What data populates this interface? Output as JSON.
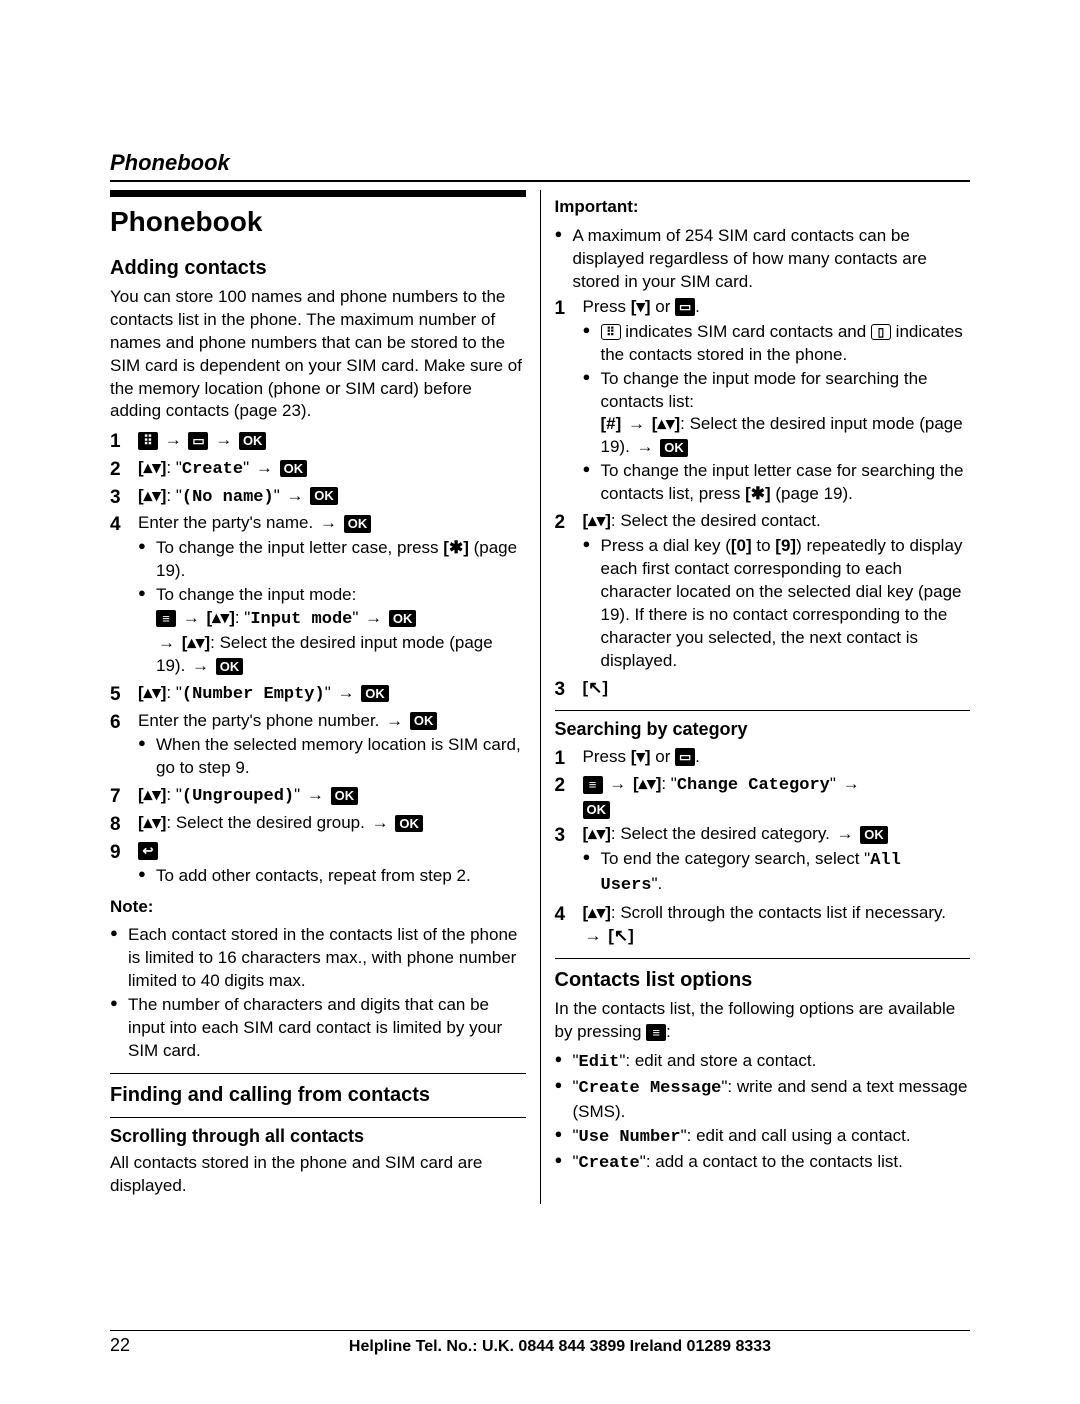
{
  "runningHead": "Phonebook",
  "footer": {
    "page": "22",
    "helpline": "Helpline Tel. No.: U.K. 0844 844 3899 Ireland 01289 8333"
  },
  "left": {
    "h1": "Phonebook",
    "h2_add": "Adding contacts",
    "intro": "You can store 100 names and phone numbers to the contacts list in the phone. The maximum number of names and phone numbers that can be stored to the SIM card is dependent on your SIM card. Make sure of the memory location (phone or SIM card) before adding contacts (page 23).",
    "s2_create": "Create",
    "s3_noname": "(No name)",
    "s4_enter": "Enter the party's name.",
    "s4_b1": "To change the input letter case, press",
    "s4_b1_tail": "(page 19).",
    "s4_b2": "To change the input mode:",
    "s4_input": "Input mode",
    "s4_b2b": ": Select the desired input mode (page 19).",
    "s5_num": "(Number Empty)",
    "s6_enter": "Enter the party's phone number.",
    "s6_b1": "When the selected memory location is SIM card, go to step 9.",
    "s7_ung": "(Ungrouped)",
    "s8": ": Select the desired group.",
    "s9_b1": "To add other contacts, repeat from step 2.",
    "note_label": "Note:",
    "note1": "Each contact stored in the contacts list of the phone is limited to 16 characters max., with phone number limited to 40 digits max.",
    "note2": "The number of characters and digits that can be input into each SIM card contact is limited by your SIM card.",
    "h2_find": "Finding and calling from contacts",
    "h3_scroll": "Scrolling through all contacts",
    "scroll_p": "All contacts stored in the phone and SIM card are displayed."
  },
  "right": {
    "important": "Important:",
    "imp1": "A maximum of 254 SIM card contacts can be displayed regardless of how many contacts are stored in your SIM card.",
    "s1_press": "Press",
    "s1_or": "or",
    "s1_b1a": "indicates SIM card contacts and",
    "s1_b1b": "indicates the contacts stored in the phone.",
    "s1_b2a": "To change the input mode for searching the contacts list:",
    "s1_b2b": ": Select the desired input mode (page 19).",
    "s1_b3a": "To change the input letter case for searching the contacts list, press",
    "s1_b3b": "(page 19).",
    "s2": ": Select the desired contact.",
    "s2_b1": "Press a dial key (",
    "s2_b1b": ") repeatedly to display each first contact corresponding to each character located on the selected dial key (page 19). If there is no contact corresponding to the character you selected, the next contact is displayed.",
    "s2_to": " to ",
    "h3_cat": "Searching by category",
    "c1_press": "Press",
    "c1_or": "or",
    "c2_change": "Change Category",
    "c3": ": Select the desired category.",
    "c3_b1": "To end the category search, select",
    "c3_all": "All Users",
    "c4": ": Scroll through the contacts list if necessary.",
    "h2_opts": "Contacts list options",
    "opts_p": "In the contacts list, the following options are available by pressing",
    "o1_k": "Edit",
    "o1_t": ": edit and store a contact.",
    "o2_k": "Create Message",
    "o2_t": ": write and send a text message (SMS).",
    "o3_k": "Use Number",
    "o3_t": ": edit and call using a contact.",
    "o4_k": "Create",
    "o4_t": ": add a contact to the contacts list."
  },
  "keys": {
    "updown": "[▴▾]",
    "down": "[▾]",
    "hash": "[#]",
    "star": "[✱]",
    "zero": "[0]",
    "nine": "[9]",
    "call_open": "[",
    "call_close": "]"
  }
}
